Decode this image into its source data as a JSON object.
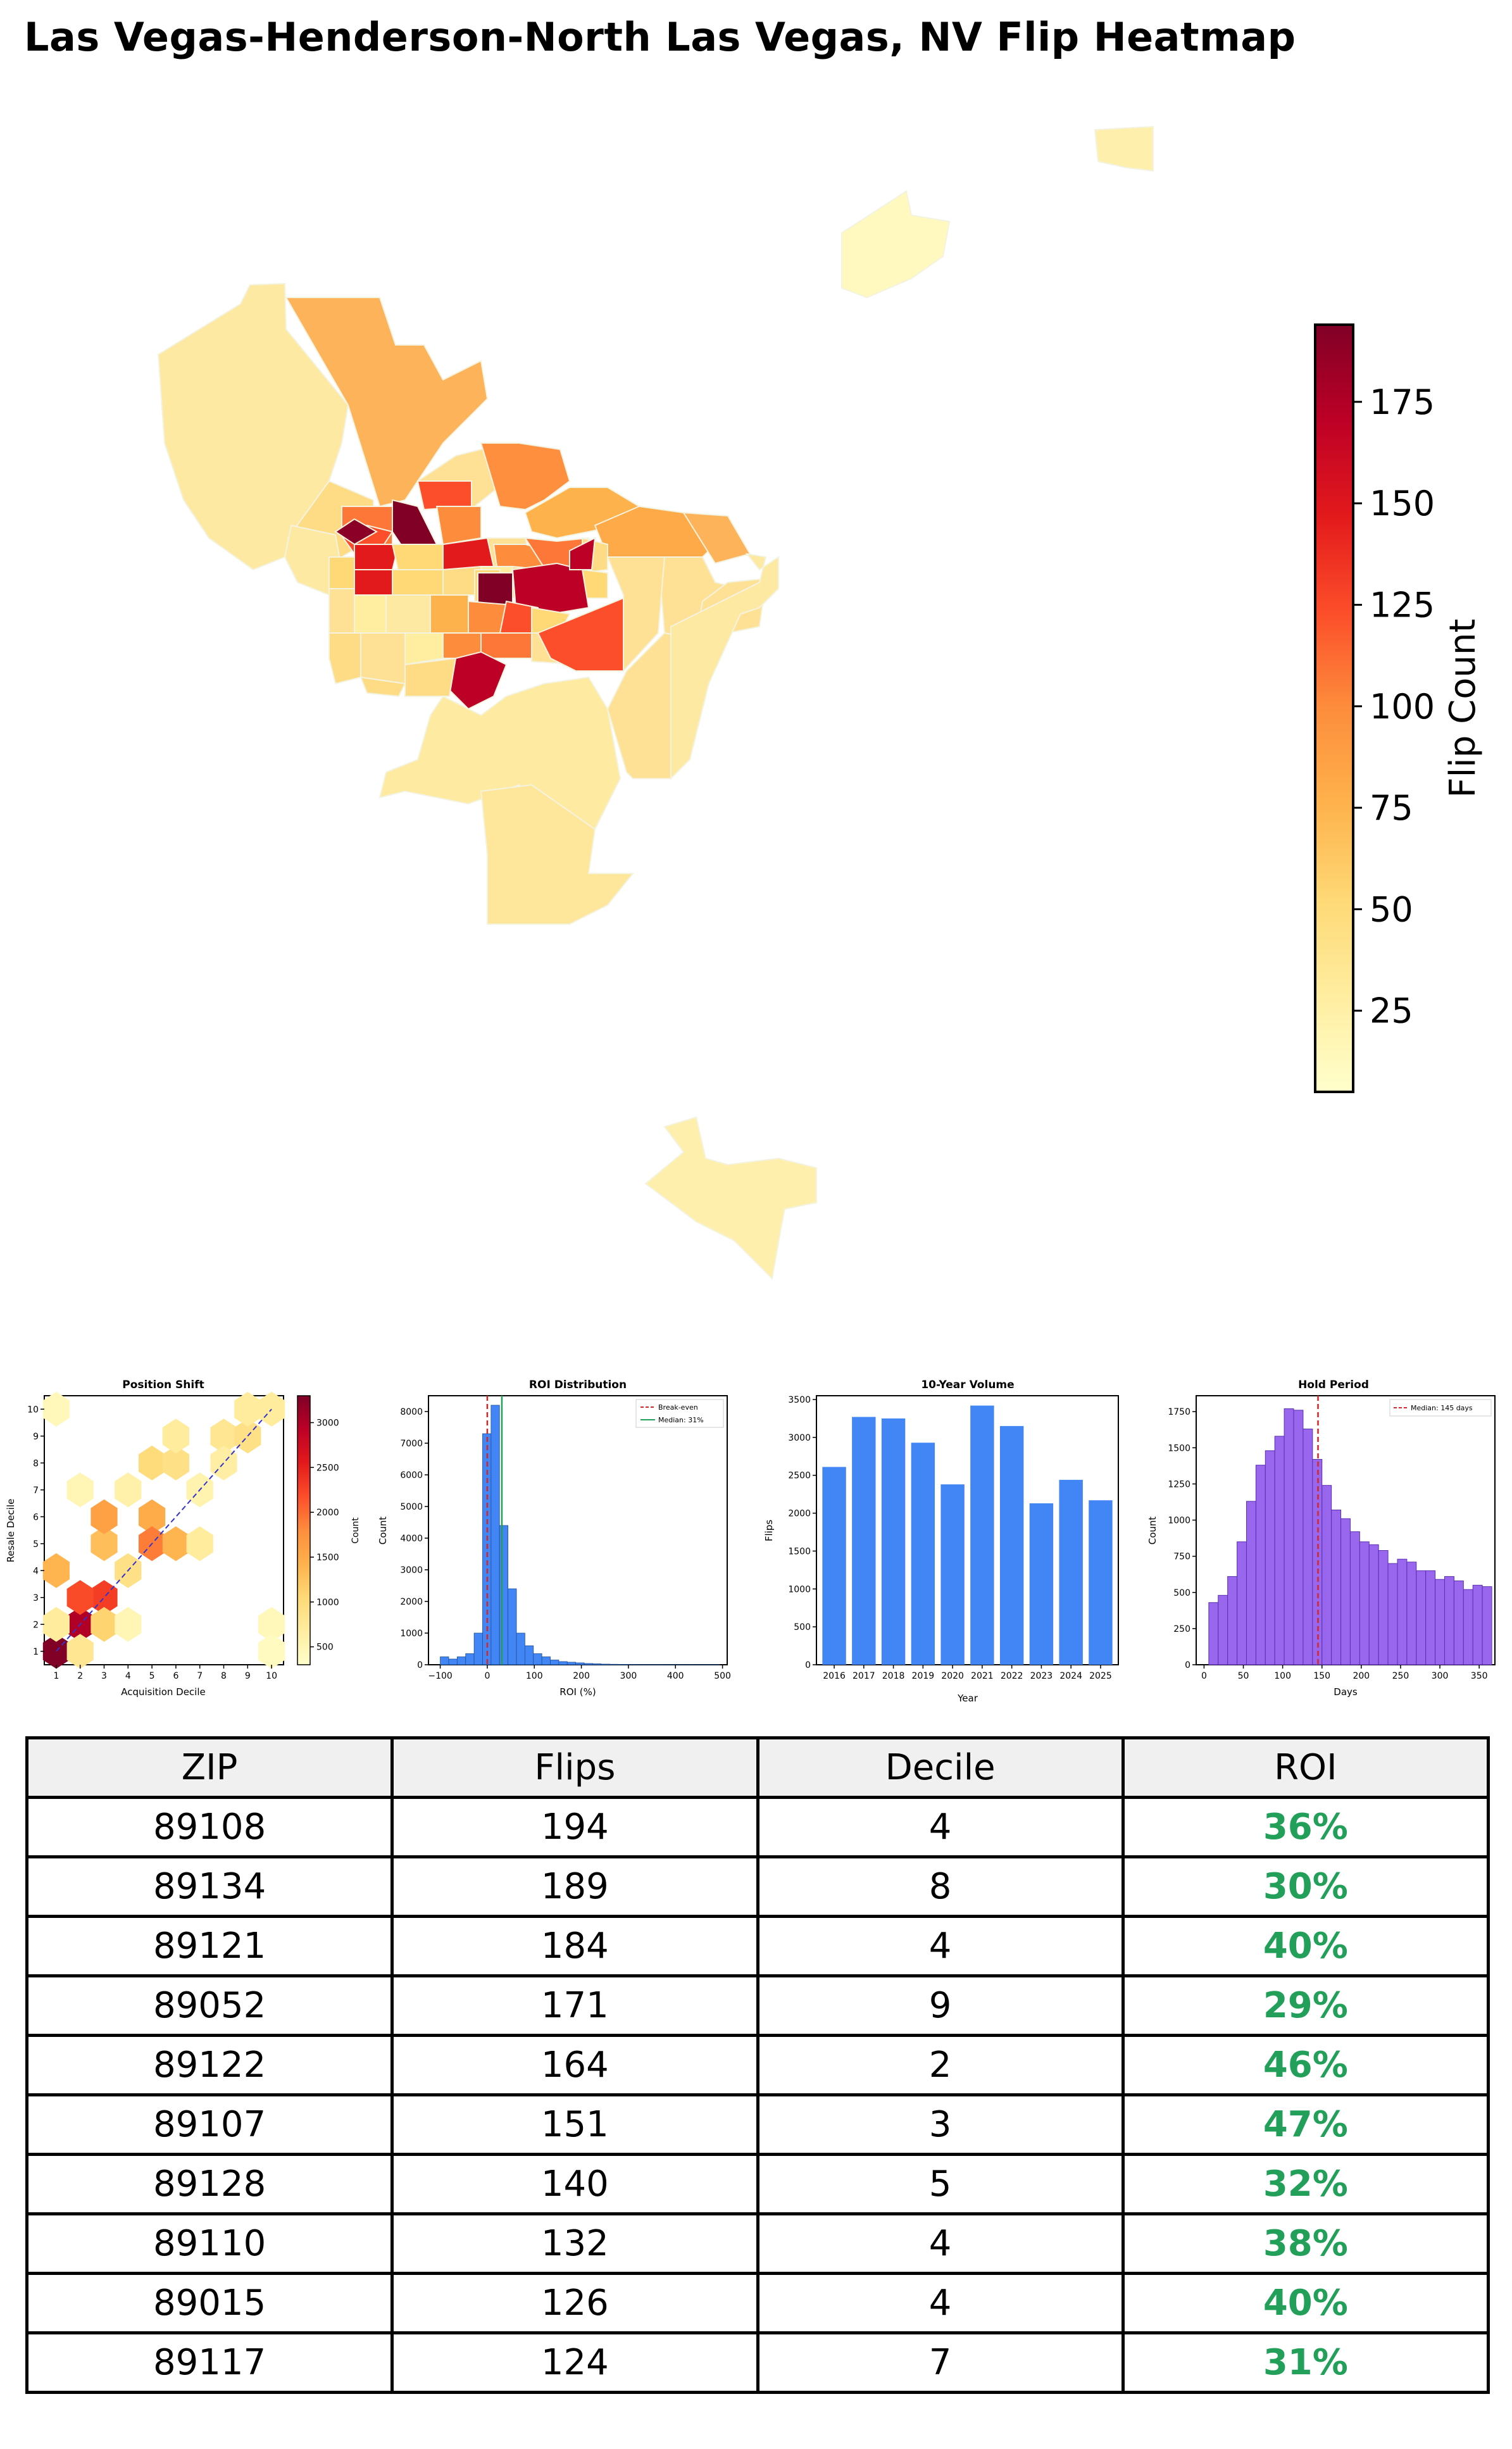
{
  "title": "Las Vegas-Henderson-North Las Vegas, NV Flip Heatmap",
  "colors": {
    "bar_blue": "#4285f4",
    "hold_purple": "#9966ee",
    "roi_green": "#22a05a",
    "median_line": "#22a05a",
    "break_even": "#d62728"
  },
  "chart_data": [
    {
      "type": "heatmap",
      "id": "map",
      "title": "Las Vegas-Henderson-North Las Vegas, NV Flip Heatmap",
      "colorbar": {
        "label": "Flip Count",
        "range": [
          5,
          194
        ],
        "ticks": [
          25,
          50,
          75,
          100,
          125,
          150,
          175
        ]
      }
    },
    {
      "type": "heatmap",
      "id": "position-shift",
      "title": "Position Shift",
      "xlabel": "Acquisition Decile",
      "ylabel": "Resale Decile",
      "xticks": [
        1,
        2,
        3,
        4,
        5,
        6,
        7,
        8,
        9,
        10
      ],
      "yticks": [
        1,
        2,
        3,
        4,
        5,
        6,
        7,
        8,
        9,
        10
      ],
      "colorbar": {
        "label": "Count",
        "range": [
          300,
          3300
        ],
        "ticks": [
          500,
          1000,
          1500,
          2000,
          2500,
          3000
        ]
      },
      "cells": [
        {
          "x": 1,
          "y": 1,
          "v": 3300
        },
        {
          "x": 2,
          "y": 2,
          "v": 3000
        },
        {
          "x": 3,
          "y": 3,
          "v": 2300
        },
        {
          "x": 2,
          "y": 3,
          "v": 2200
        },
        {
          "x": 1,
          "y": 4,
          "v": 1400
        },
        {
          "x": 3,
          "y": 5,
          "v": 1300
        },
        {
          "x": 3,
          "y": 6,
          "v": 1600
        },
        {
          "x": 5,
          "y": 6,
          "v": 1500
        },
        {
          "x": 5,
          "y": 5,
          "v": 1900
        },
        {
          "x": 6,
          "y": 5,
          "v": 1400
        },
        {
          "x": 4,
          "y": 4,
          "v": 900
        },
        {
          "x": 7,
          "y": 5,
          "v": 700
        },
        {
          "x": 5,
          "y": 8,
          "v": 1000
        },
        {
          "x": 6,
          "y": 8,
          "v": 900
        },
        {
          "x": 6,
          "y": 9,
          "v": 700
        },
        {
          "x": 8,
          "y": 9,
          "v": 800
        },
        {
          "x": 9,
          "y": 9,
          "v": 900
        },
        {
          "x": 10,
          "y": 10,
          "v": 700
        },
        {
          "x": 9,
          "y": 10,
          "v": 700
        },
        {
          "x": 3,
          "y": 2,
          "v": 1100
        },
        {
          "x": 2,
          "y": 1,
          "v": 800
        },
        {
          "x": 1,
          "y": 2,
          "v": 700
        },
        {
          "x": 1,
          "y": 10,
          "v": 450
        },
        {
          "x": 2,
          "y": 7,
          "v": 500
        },
        {
          "x": 4,
          "y": 7,
          "v": 600
        },
        {
          "x": 7,
          "y": 7,
          "v": 550
        },
        {
          "x": 8,
          "y": 8,
          "v": 650
        },
        {
          "x": 10,
          "y": 2,
          "v": 450
        },
        {
          "x": 10,
          "y": 1,
          "v": 400
        },
        {
          "x": 4,
          "y": 2,
          "v": 500
        }
      ]
    },
    {
      "type": "bar",
      "id": "roi-distribution",
      "title": "ROI Distribution",
      "xlabel": "ROI (%)",
      "ylabel": "Count",
      "xlim": [
        -125,
        510
      ],
      "ylim": [
        0,
        8500
      ],
      "xticks": [
        -100,
        0,
        100,
        200,
        300,
        400,
        500
      ],
      "yticks": [
        0,
        1000,
        2000,
        3000,
        4000,
        5000,
        6000,
        7000,
        8000
      ],
      "bin_width": 18,
      "bin_starts": [
        -100,
        -82,
        -64,
        -46,
        -28,
        -10,
        8,
        26,
        44,
        62,
        80,
        98,
        116,
        134,
        152,
        170,
        188,
        206,
        224,
        242,
        260,
        278,
        296,
        314,
        332,
        350,
        368,
        386,
        404,
        422,
        440,
        458,
        476
      ],
      "values": [
        250,
        180,
        250,
        350,
        1000,
        7300,
        8200,
        4400,
        2400,
        1000,
        600,
        350,
        250,
        150,
        100,
        80,
        60,
        40,
        30,
        20,
        15,
        10,
        8,
        6,
        5,
        5,
        4,
        3,
        2,
        2,
        1,
        1,
        1
      ],
      "legend": [
        "Break-even",
        "Median: 31%"
      ],
      "break_even": 0,
      "median": 31
    },
    {
      "type": "bar",
      "id": "ten-year-volume",
      "title": "10-Year Volume",
      "xlabel": "Year",
      "ylabel": "Flips",
      "ylim": [
        0,
        3550
      ],
      "yticks": [
        0,
        500,
        1000,
        1500,
        2000,
        2500,
        3000,
        3500
      ],
      "categories": [
        "2016",
        "2017",
        "2018",
        "2019",
        "2020",
        "2021",
        "2022",
        "2023",
        "2024",
        "2025"
      ],
      "values": [
        2610,
        3270,
        3250,
        2930,
        2380,
        3420,
        3150,
        2130,
        2440,
        2170
      ]
    },
    {
      "type": "bar",
      "id": "hold-period",
      "title": "Hold Period",
      "xlabel": "Days",
      "ylabel": "Count",
      "xlim": [
        -10,
        370
      ],
      "ylim": [
        0,
        1860
      ],
      "xticks": [
        0,
        50,
        100,
        150,
        200,
        250,
        300,
        350
      ],
      "yticks": [
        0,
        250,
        500,
        750,
        1000,
        1250,
        1500,
        1750
      ],
      "bin_width": 12,
      "bin_starts": [
        6,
        18,
        30,
        42,
        54,
        66,
        78,
        90,
        102,
        114,
        126,
        138,
        150,
        162,
        174,
        186,
        198,
        210,
        222,
        234,
        246,
        258,
        270,
        282,
        294,
        306,
        318,
        330,
        342,
        354
      ],
      "values": [
        430,
        480,
        610,
        850,
        1130,
        1380,
        1480,
        1580,
        1770,
        1760,
        1630,
        1420,
        1240,
        1070,
        1010,
        920,
        850,
        830,
        790,
        700,
        730,
        710,
        650,
        650,
        590,
        610,
        580,
        520,
        550,
        540
      ],
      "legend": [
        "Median: 145 days"
      ],
      "median": 145
    }
  ],
  "table": {
    "headers": [
      "ZIP",
      "Flips",
      "Decile",
      "ROI"
    ],
    "rows": [
      {
        "zip": "89108",
        "flips": "194",
        "decile": "4",
        "roi": "36%"
      },
      {
        "zip": "89134",
        "flips": "189",
        "decile": "8",
        "roi": "30%"
      },
      {
        "zip": "89121",
        "flips": "184",
        "decile": "4",
        "roi": "40%"
      },
      {
        "zip": "89052",
        "flips": "171",
        "decile": "9",
        "roi": "29%"
      },
      {
        "zip": "89122",
        "flips": "164",
        "decile": "2",
        "roi": "46%"
      },
      {
        "zip": "89107",
        "flips": "151",
        "decile": "3",
        "roi": "47%"
      },
      {
        "zip": "89128",
        "flips": "140",
        "decile": "5",
        "roi": "32%"
      },
      {
        "zip": "89110",
        "flips": "132",
        "decile": "4",
        "roi": "38%"
      },
      {
        "zip": "89015",
        "flips": "126",
        "decile": "4",
        "roi": "40%"
      },
      {
        "zip": "89117",
        "flips": "124",
        "decile": "7",
        "roi": "31%"
      }
    ]
  }
}
